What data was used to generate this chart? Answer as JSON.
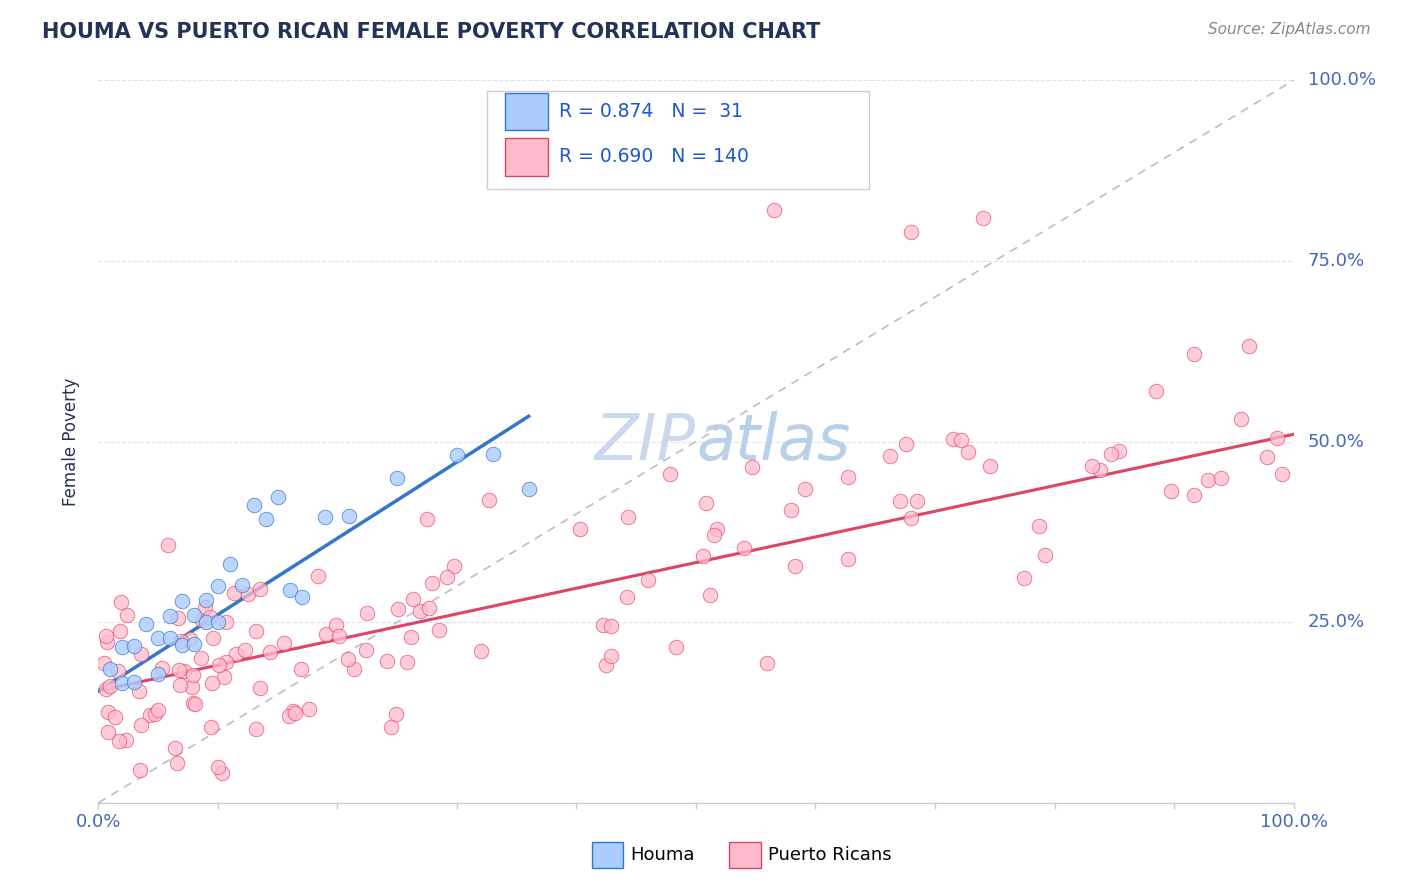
{
  "title": "HOUMA VS PUERTO RICAN FEMALE POVERTY CORRELATION CHART",
  "source_text": "Source: ZipAtlas.com",
  "ylabel": "Female Poverty",
  "xlim": [
    0.0,
    1.0
  ],
  "ylim": [
    0.0,
    1.0
  ],
  "xticks": [
    0.0,
    0.1,
    0.2,
    0.3,
    0.4,
    0.5,
    0.6,
    0.7,
    0.8,
    0.9,
    1.0
  ],
  "yticks": [
    0.0,
    0.25,
    0.5,
    0.75,
    1.0
  ],
  "right_ytick_labels": [
    "",
    "25.0%",
    "50.0%",
    "75.0%",
    "100.0%"
  ],
  "houma_R": 0.874,
  "houma_N": 31,
  "pr_R": 0.69,
  "pr_N": 140,
  "houma_color": "#aaccff",
  "pr_color": "#ffbbcc",
  "trend_houma_color": "#3377cc",
  "trend_pr_color": "#dd4466",
  "refline_color": "#bbbbcc",
  "grid_color": "#e0e0ee",
  "title_color": "#223355",
  "axis_label_color": "#223355",
  "tick_label_color": "#4466bb",
  "watermark_color": "#ccd8ee",
  "legend_R_color": "#2255cc",
  "background_color": "#ffffff",
  "houma_trend_x0": 0.0,
  "houma_trend_y0": 0.155,
  "houma_trend_x1": 0.36,
  "houma_trend_y1": 0.535,
  "pr_trend_x0": 0.0,
  "pr_trend_y0": 0.155,
  "pr_trend_x1": 1.0,
  "pr_trend_y1": 0.51
}
